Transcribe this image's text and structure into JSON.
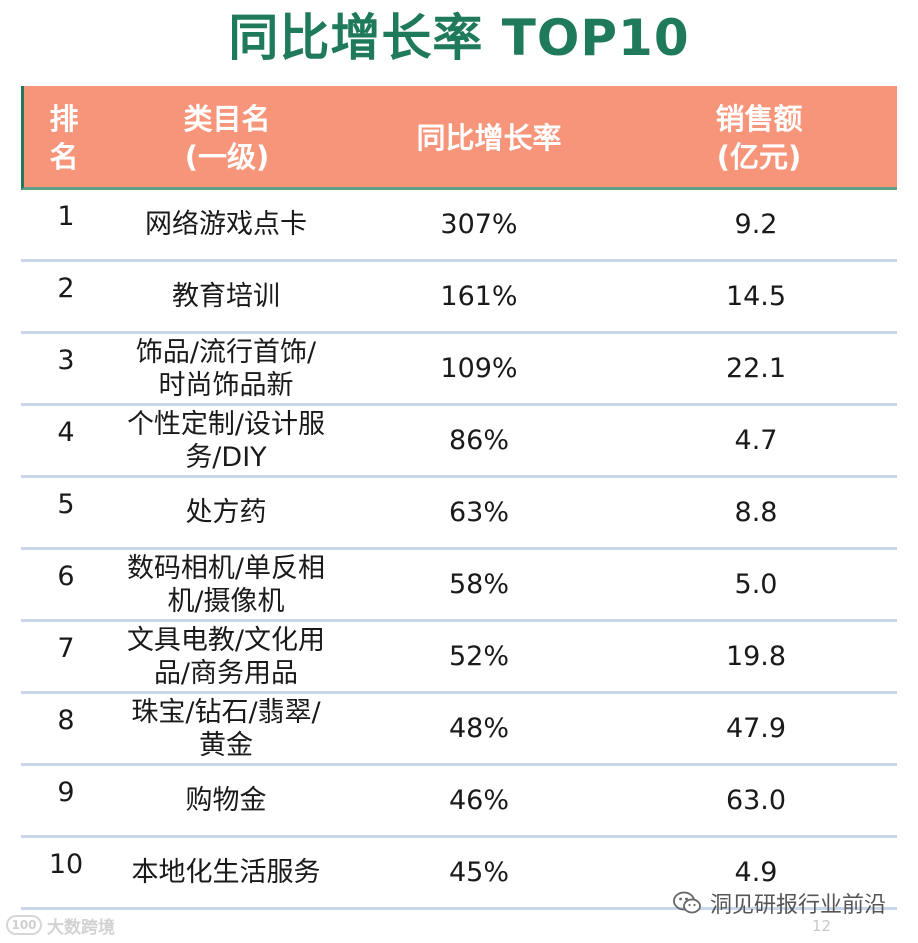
{
  "title": "同比增长率 TOP10",
  "header": {
    "rank_line1": "排",
    "rank_line2": "名",
    "category_line1": "类目名",
    "category_line2": "(一级)",
    "growth": "同比增长率",
    "sales_line1": "销售额",
    "sales_line2": "(亿元)"
  },
  "rows": [
    {
      "rank": "1",
      "category_line1": "网络游戏点卡",
      "category_line2": "",
      "growth": "307%",
      "sales": "9.2"
    },
    {
      "rank": "2",
      "category_line1": "教育培训",
      "category_line2": "",
      "growth": "161%",
      "sales": "14.5"
    },
    {
      "rank": "3",
      "category_line1": "饰品/流行首饰/",
      "category_line2": "时尚饰品新",
      "growth": "109%",
      "sales": "22.1"
    },
    {
      "rank": "4",
      "category_line1": "个性定制/设计服",
      "category_line2": "务/DIY",
      "growth": "86%",
      "sales": "4.7"
    },
    {
      "rank": "5",
      "category_line1": "处方药",
      "category_line2": "",
      "growth": "63%",
      "sales": "8.8"
    },
    {
      "rank": "6",
      "category_line1": "数码相机/单反相",
      "category_line2": "机/摄像机",
      "growth": "58%",
      "sales": "5.0"
    },
    {
      "rank": "7",
      "category_line1": "文具电教/文化用",
      "category_line2": "品/商务用品",
      "growth": "52%",
      "sales": "19.8"
    },
    {
      "rank": "8",
      "category_line1": "珠宝/钻石/翡翠/",
      "category_line2": "黄金",
      "growth": "48%",
      "sales": "47.9"
    },
    {
      "rank": "9",
      "category_line1": "购物金",
      "category_line2": "",
      "growth": "46%",
      "sales": "63.0"
    },
    {
      "rank": "10",
      "category_line1": "本地化生活服务",
      "category_line2": "",
      "growth": "45%",
      "sales": "4.9"
    }
  ],
  "footer": {
    "logo_text": "100",
    "brand": "大数跨境",
    "page_number": "12",
    "watermark": "洞见研报行业前沿"
  },
  "icons": {
    "logo": "brand-logo-icon",
    "watermark": "wechat-icon"
  },
  "colors": {
    "title": "#1e7a5a",
    "header_bg": "#f7957a",
    "header_text": "#ffffff",
    "row_divider": "#c9d7ea"
  }
}
